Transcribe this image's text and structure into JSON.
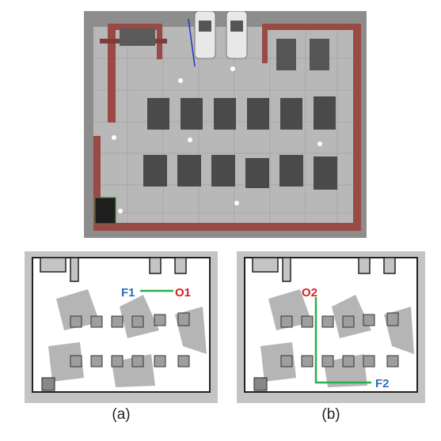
{
  "panels": {
    "a": {
      "caption": "(a)",
      "from_label": "F1",
      "to_label": "O1"
    },
    "b": {
      "caption": "(b)",
      "from_label": "O2",
      "to_label": "F2"
    }
  },
  "colors": {
    "label_blue": "#2e6fb4",
    "label_red": "#d82020",
    "path_green": "#2bae4f",
    "wall_brick": "#9a4a45",
    "floor_gray": "#7a7a7a",
    "obstacle_gray": "#4a4a4a"
  }
}
